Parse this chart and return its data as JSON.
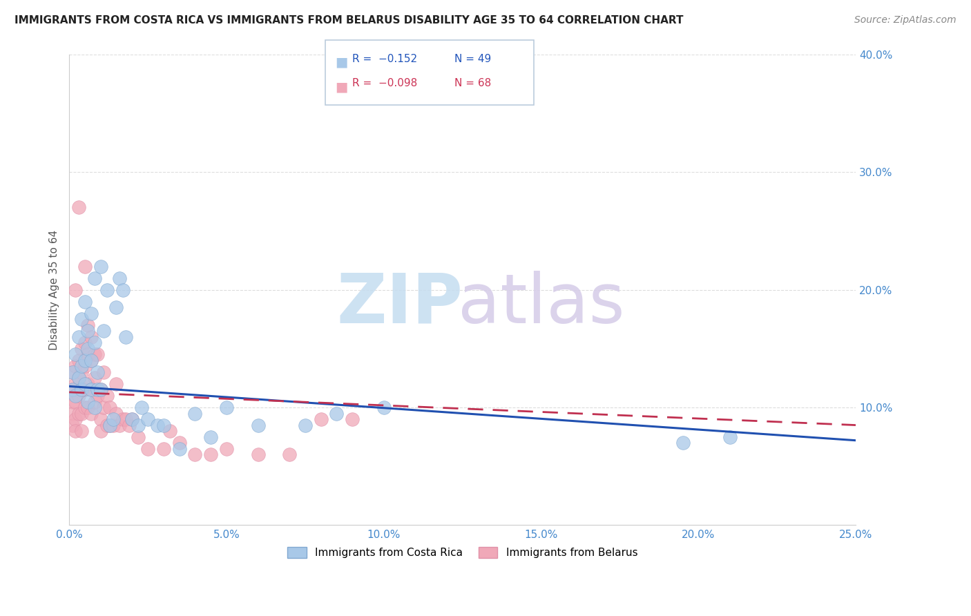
{
  "title": "IMMIGRANTS FROM COSTA RICA VS IMMIGRANTS FROM BELARUS DISABILITY AGE 35 TO 64 CORRELATION CHART",
  "source": "Source: ZipAtlas.com",
  "ylabel": "Disability Age 35 to 64",
  "xlim": [
    0.0,
    0.25
  ],
  "ylim": [
    0.0,
    0.4
  ],
  "xticks": [
    0.0,
    0.05,
    0.1,
    0.15,
    0.2,
    0.25
  ],
  "yticks_right": [
    0.1,
    0.2,
    0.3,
    0.4
  ],
  "ytick_labels_right": [
    "10.0%",
    "20.0%",
    "30.0%",
    "40.0%"
  ],
  "xtick_labels": [
    "0.0%",
    "5.0%",
    "10.0%",
    "15.0%",
    "20.0%",
    "25.0%"
  ],
  "legend_blue_r": "-0.152",
  "legend_blue_n": "49",
  "legend_pink_r": "-0.098",
  "legend_pink_n": "68",
  "blue_color": "#a8c8e8",
  "pink_color": "#f0a8b8",
  "line_blue_color": "#2050b0",
  "line_pink_color": "#c03050",
  "blue_line_start_y": 0.118,
  "blue_line_end_y": 0.072,
  "pink_line_start_y": 0.113,
  "pink_line_end_y": 0.085,
  "costa_rica_x": [
    0.001,
    0.001,
    0.002,
    0.002,
    0.003,
    0.003,
    0.004,
    0.004,
    0.004,
    0.005,
    0.005,
    0.005,
    0.006,
    0.006,
    0.006,
    0.007,
    0.007,
    0.007,
    0.008,
    0.008,
    0.008,
    0.009,
    0.009,
    0.01,
    0.01,
    0.011,
    0.012,
    0.013,
    0.014,
    0.015,
    0.016,
    0.017,
    0.018,
    0.02,
    0.022,
    0.023,
    0.025,
    0.028,
    0.03,
    0.035,
    0.04,
    0.045,
    0.05,
    0.06,
    0.075,
    0.085,
    0.1,
    0.195,
    0.21
  ],
  "costa_rica_y": [
    0.13,
    0.115,
    0.145,
    0.11,
    0.125,
    0.16,
    0.135,
    0.115,
    0.175,
    0.12,
    0.14,
    0.19,
    0.105,
    0.15,
    0.165,
    0.115,
    0.14,
    0.18,
    0.1,
    0.155,
    0.21,
    0.115,
    0.13,
    0.115,
    0.22,
    0.165,
    0.2,
    0.085,
    0.09,
    0.185,
    0.21,
    0.2,
    0.16,
    0.09,
    0.085,
    0.1,
    0.09,
    0.085,
    0.085,
    0.065,
    0.095,
    0.075,
    0.1,
    0.085,
    0.085,
    0.095,
    0.1,
    0.07,
    0.075
  ],
  "belarus_x": [
    0.001,
    0.001,
    0.001,
    0.001,
    0.001,
    0.002,
    0.002,
    0.002,
    0.002,
    0.002,
    0.002,
    0.003,
    0.003,
    0.003,
    0.003,
    0.003,
    0.004,
    0.004,
    0.004,
    0.004,
    0.004,
    0.005,
    0.005,
    0.005,
    0.005,
    0.005,
    0.006,
    0.006,
    0.006,
    0.006,
    0.007,
    0.007,
    0.007,
    0.007,
    0.008,
    0.008,
    0.008,
    0.009,
    0.009,
    0.01,
    0.01,
    0.01,
    0.011,
    0.011,
    0.012,
    0.012,
    0.013,
    0.013,
    0.014,
    0.015,
    0.015,
    0.016,
    0.017,
    0.018,
    0.019,
    0.02,
    0.022,
    0.025,
    0.03,
    0.032,
    0.035,
    0.04,
    0.045,
    0.05,
    0.06,
    0.07,
    0.08,
    0.09
  ],
  "belarus_y": [
    0.13,
    0.115,
    0.105,
    0.095,
    0.085,
    0.135,
    0.12,
    0.105,
    0.09,
    0.08,
    0.2,
    0.14,
    0.125,
    0.11,
    0.095,
    0.27,
    0.15,
    0.13,
    0.115,
    0.095,
    0.08,
    0.22,
    0.155,
    0.135,
    0.115,
    0.1,
    0.17,
    0.145,
    0.12,
    0.1,
    0.16,
    0.14,
    0.115,
    0.095,
    0.145,
    0.125,
    0.105,
    0.145,
    0.11,
    0.115,
    0.09,
    0.08,
    0.13,
    0.1,
    0.11,
    0.085,
    0.1,
    0.085,
    0.085,
    0.12,
    0.095,
    0.085,
    0.09,
    0.09,
    0.085,
    0.09,
    0.075,
    0.065,
    0.065,
    0.08,
    0.07,
    0.06,
    0.06,
    0.065,
    0.06,
    0.06,
    0.09,
    0.09
  ]
}
